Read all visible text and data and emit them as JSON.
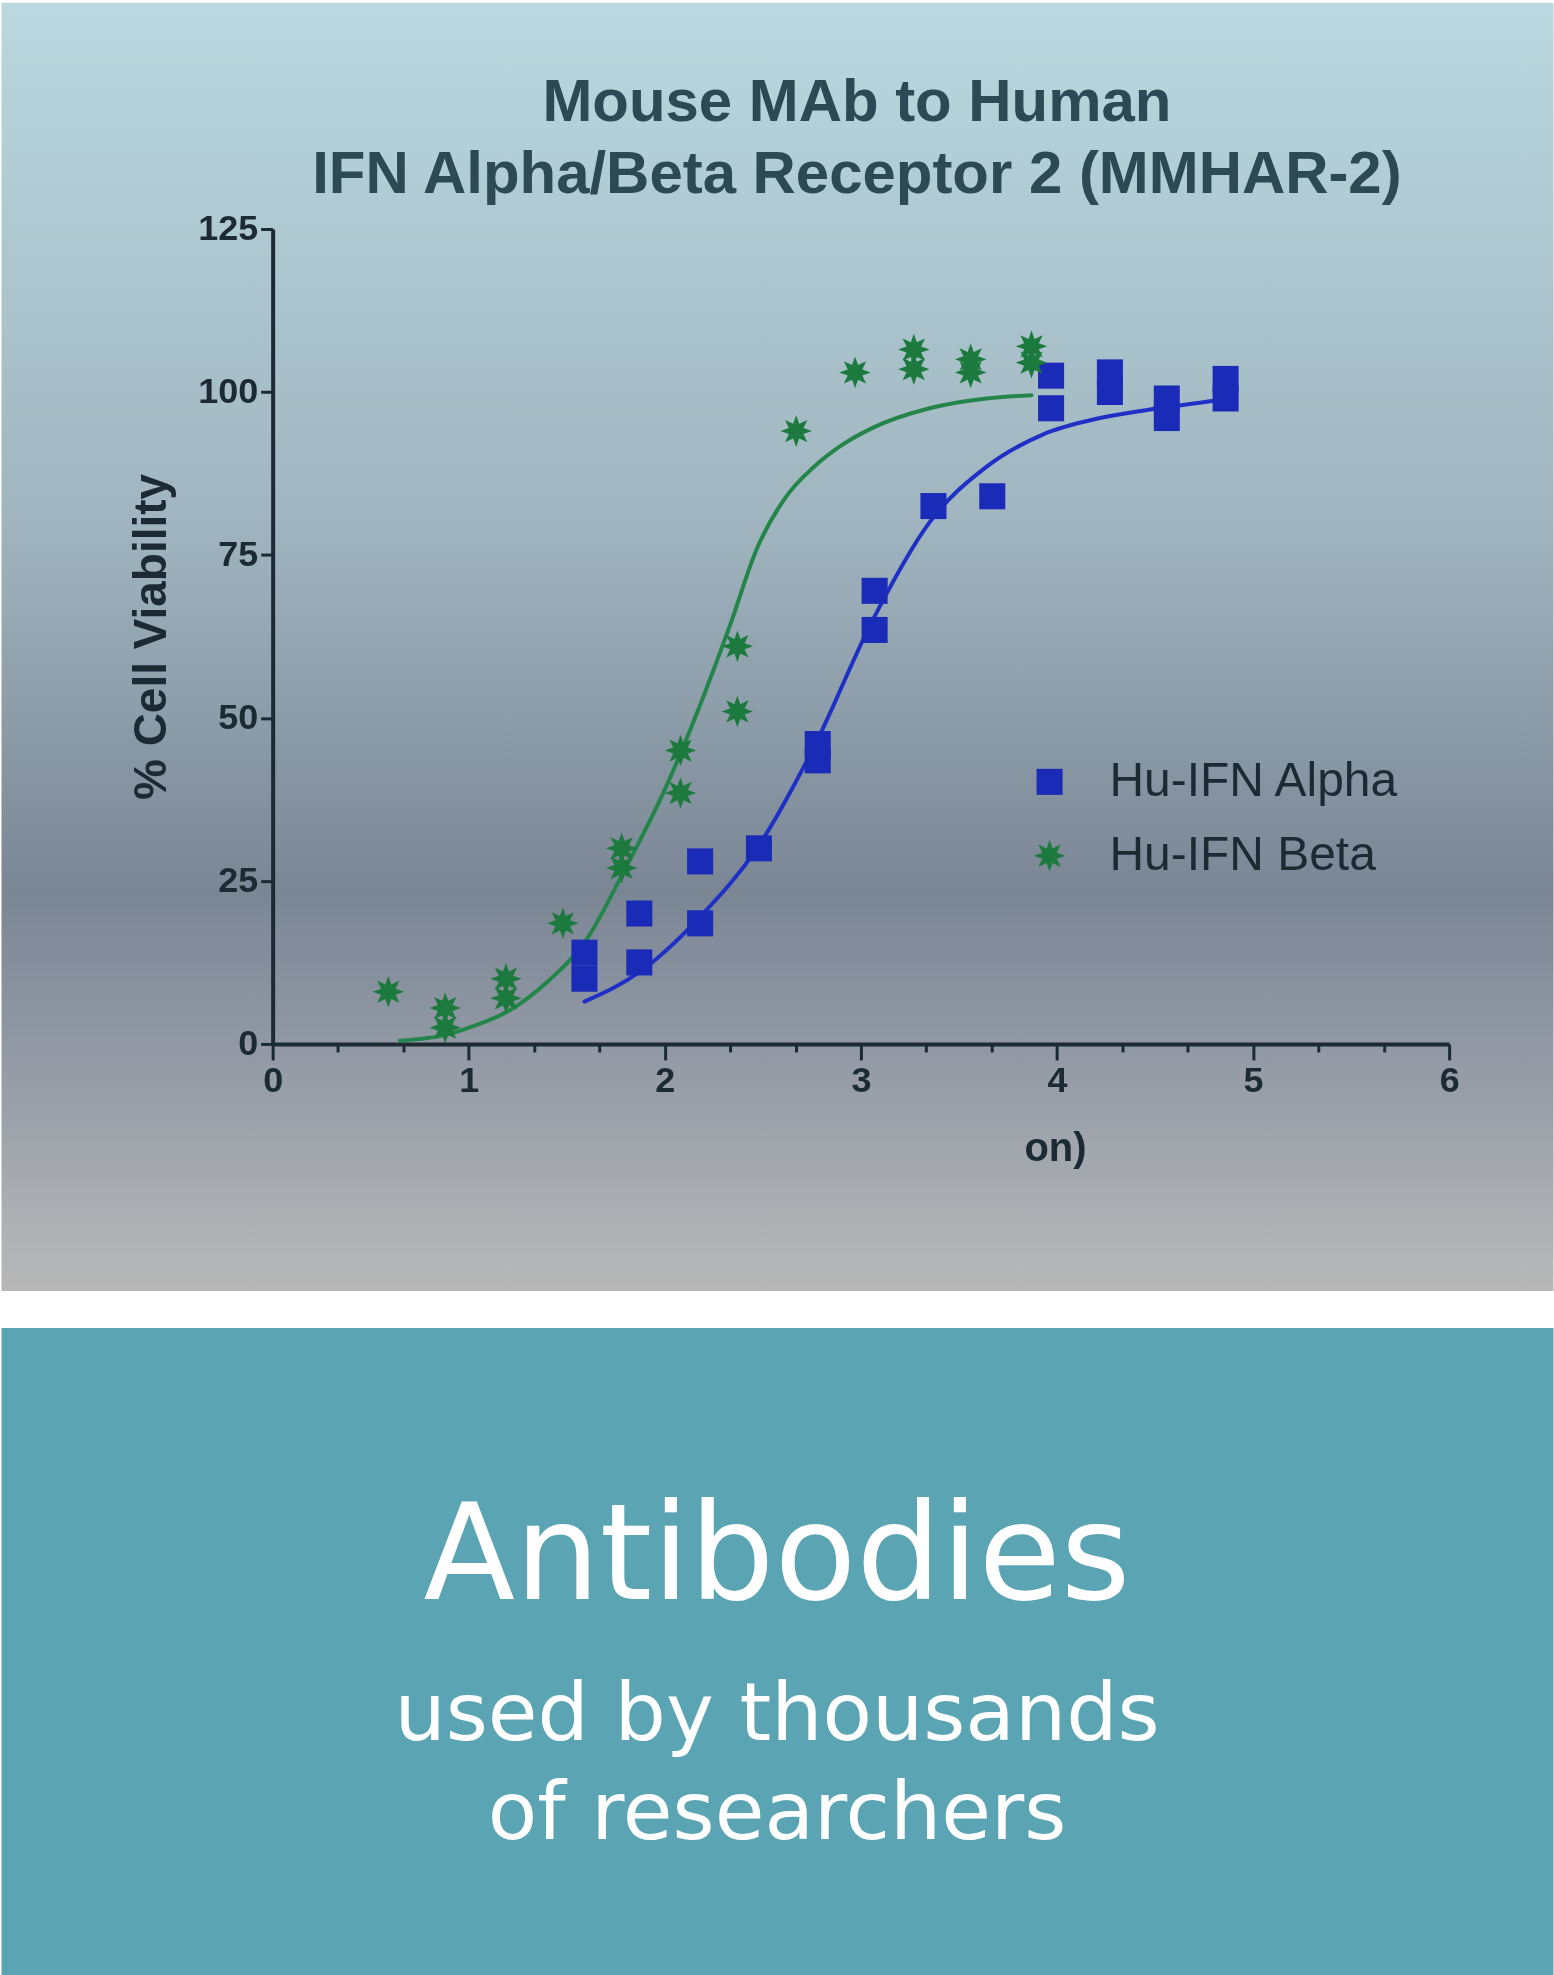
{
  "chart_data": {
    "type": "scatter",
    "title": "Mouse MAb to Human\nIFN Alpha/Beta Receptor 2 (MMHAR-2)",
    "xlabel": "on)",
    "ylabel": "% Cell Viability",
    "xlim": [
      0,
      6
    ],
    "ylim": [
      0,
      125
    ],
    "xticks": [
      0,
      {
        "value": 0.333,
        "label": null
      },
      {
        "value": 0.667,
        "label": null
      },
      1,
      {
        "value": 1.333,
        "label": null
      },
      {
        "value": 1.667,
        "label": null
      },
      2,
      {
        "value": 2.333,
        "label": null
      },
      {
        "value": 2.667,
        "label": null
      },
      3,
      {
        "value": 3.333,
        "label": null
      },
      {
        "value": 3.667,
        "label": null
      },
      4,
      {
        "value": 4.333,
        "label": null
      },
      {
        "value": 4.667,
        "label": null
      },
      5,
      {
        "value": 5.333,
        "label": null
      },
      {
        "value": 5.667,
        "label": null
      },
      6
    ],
    "yticks": [
      0,
      25,
      50,
      75,
      100,
      125
    ],
    "grid": false,
    "legend": "bottom right",
    "series": [
      {
        "name": "Hu-IFN Alpha",
        "type": "scatter",
        "marker": "square",
        "color": "#1a2bb8",
        "x": [
          1.59,
          1.59,
          1.87,
          1.87,
          2.18,
          2.18,
          2.48,
          2.78,
          2.78,
          3.07,
          3.07,
          3.37,
          3.67,
          3.97,
          3.97,
          4.27,
          4.27,
          4.56,
          4.56,
          4.86,
          4.86
        ],
        "values": [
          14,
          10,
          20,
          12.5,
          28,
          18.5,
          30,
          46,
          43.5,
          69.5,
          63.5,
          82.5,
          84,
          102.5,
          97.5,
          103,
          100,
          99,
          96,
          102,
          99
        ]
      },
      {
        "name": "Hu-IFN Beta",
        "type": "scatter",
        "marker": "star",
        "color": "#1d7a3e",
        "x": [
          0.59,
          0.88,
          0.88,
          1.19,
          1.19,
          1.48,
          1.78,
          1.78,
          2.08,
          2.08,
          2.37,
          2.37,
          2.67,
          2.97,
          3.27,
          3.27,
          3.56,
          3.56,
          3.87,
          3.87
        ],
        "values": [
          8,
          5.5,
          2.5,
          10,
          7,
          18.5,
          30,
          27,
          45,
          38.5,
          61,
          51,
          94,
          103,
          106.5,
          103.5,
          105,
          103,
          107,
          104.5
        ]
      },
      {
        "type": "line",
        "color": "#1f30c6",
        "line_style": "solid",
        "x": [
          1.59,
          1.87,
          2.18,
          2.47,
          2.76,
          3.06,
          3.35,
          3.64,
          3.93,
          4.22,
          4.52,
          4.9
        ],
        "values": [
          6.5,
          11,
          19.5,
          30,
          45.5,
          65,
          80,
          88.5,
          93.5,
          96,
          97.5,
          99
        ]
      },
      {
        "type": "line",
        "color": "#238549",
        "line_style": "solid",
        "x": [
          0.65,
          0.9,
          1.0,
          1.2,
          1.4,
          1.6,
          1.8,
          2.0,
          2.18,
          2.33,
          2.47,
          2.62,
          2.76,
          2.91,
          3.06,
          3.35,
          3.64,
          3.87
        ],
        "values": [
          0.5,
          1.5,
          2.5,
          5,
          9.5,
          16,
          27,
          39,
          52,
          64,
          76,
          84,
          88.5,
          92,
          94.5,
          97.5,
          99,
          99.5
        ]
      }
    ],
    "annotations": [
      "Antibodies",
      "used by thousands of researchers"
    ]
  }
}
